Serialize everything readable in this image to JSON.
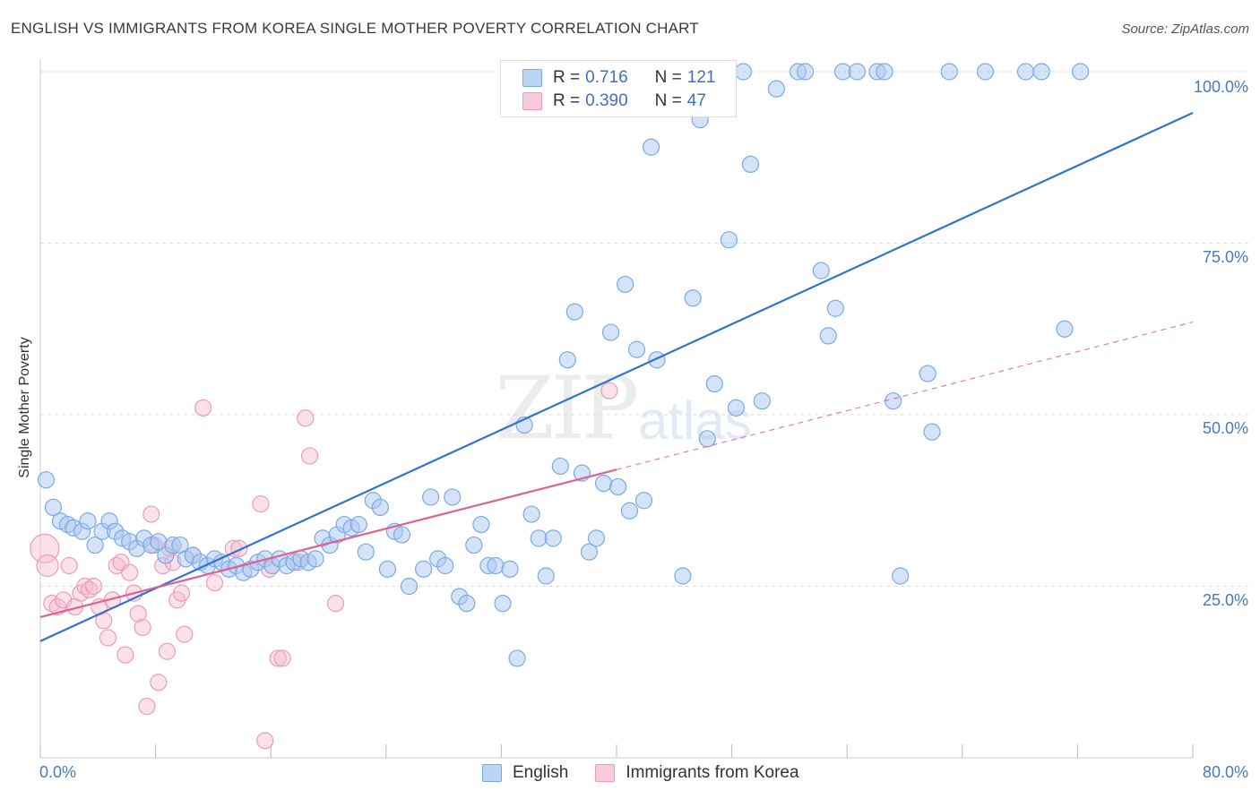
{
  "header": {
    "title": "ENGLISH VS IMMIGRANTS FROM KOREA SINGLE MOTHER POVERTY CORRELATION CHART",
    "source": "Source: ZipAtlas.com"
  },
  "watermark": {
    "zip": "ZIP",
    "atlas": "atlas"
  },
  "legend": {
    "english": {
      "r_label": "R =",
      "r_value": "0.716",
      "n_label": "N =",
      "n_value": "121",
      "name": "English"
    },
    "korea": {
      "r_label": "R =",
      "r_value": "0.390",
      "n_label": "N =",
      "n_value": "47",
      "name": "Immigrants from Korea"
    }
  },
  "colors": {
    "english_fill": "#a9c8f0",
    "english_stroke": "#7aaae6",
    "english_line": "#2f72d0",
    "korea_fill": "#f6bcd0",
    "korea_stroke": "#ee9ab8",
    "korea_line": "#e0608e",
    "grid": "#dddddd",
    "axis_label": "#4a78c2"
  },
  "chart_data": {
    "type": "scatter",
    "title": "ENGLISH VS IMMIGRANTS FROM KOREA SINGLE MOTHER POVERTY CORRELATION CHART",
    "xlabel": "",
    "ylabel": "Single Mother Poverty",
    "xlim": [
      0,
      80
    ],
    "ylim": [
      0,
      104
    ],
    "x_tick_labels": [
      "0.0%",
      "80.0%"
    ],
    "y_tick_labels": [
      "25.0%",
      "50.0%",
      "75.0%",
      "100.0%"
    ],
    "y_ticks": [
      25,
      50,
      75,
      100
    ],
    "grid": true,
    "legend_position": "top-center",
    "series": [
      {
        "name": "English",
        "r": 0.716,
        "n": 121,
        "trend": {
          "x": [
            0,
            80
          ],
          "y": [
            17,
            94
          ]
        },
        "points": [
          [
            0.4,
            40.5
          ],
          [
            0.9,
            36.5
          ],
          [
            1.4,
            34.5
          ],
          [
            1.9,
            34
          ],
          [
            2.3,
            33.5
          ],
          [
            2.9,
            33
          ],
          [
            3.3,
            34.5
          ],
          [
            3.8,
            31
          ],
          [
            4.3,
            33
          ],
          [
            4.8,
            34.5
          ],
          [
            5.2,
            33
          ],
          [
            5.7,
            32
          ],
          [
            6.2,
            31.5
          ],
          [
            6.7,
            30.5
          ],
          [
            7.2,
            32
          ],
          [
            7.7,
            31
          ],
          [
            8.2,
            31.5
          ],
          [
            8.7,
            29.5
          ],
          [
            9.2,
            31
          ],
          [
            9.7,
            31
          ],
          [
            10.1,
            29
          ],
          [
            10.6,
            29.5
          ],
          [
            11.1,
            28.5
          ],
          [
            11.6,
            28
          ],
          [
            12.1,
            29
          ],
          [
            12.6,
            28.5
          ],
          [
            13.1,
            27.5
          ],
          [
            13.6,
            28
          ],
          [
            14.1,
            27
          ],
          [
            14.6,
            27.5
          ],
          [
            15.1,
            28.5
          ],
          [
            15.6,
            29
          ],
          [
            16.1,
            28
          ],
          [
            16.6,
            29
          ],
          [
            17.1,
            28
          ],
          [
            17.6,
            28.5
          ],
          [
            18.1,
            29
          ],
          [
            18.6,
            28.5
          ],
          [
            19.1,
            29
          ],
          [
            19.6,
            32
          ],
          [
            20.1,
            31
          ],
          [
            20.6,
            32.5
          ],
          [
            21.1,
            34
          ],
          [
            21.6,
            33.5
          ],
          [
            22.1,
            34
          ],
          [
            22.6,
            30
          ],
          [
            23.1,
            37.5
          ],
          [
            23.6,
            36.5
          ],
          [
            24.1,
            27.5
          ],
          [
            24.6,
            33
          ],
          [
            25.1,
            32.5
          ],
          [
            25.6,
            25
          ],
          [
            26.6,
            27.5
          ],
          [
            27.1,
            38
          ],
          [
            27.6,
            29
          ],
          [
            28.1,
            28
          ],
          [
            28.6,
            38
          ],
          [
            29.1,
            23.5
          ],
          [
            29.6,
            22.5
          ],
          [
            30.1,
            31
          ],
          [
            30.6,
            34
          ],
          [
            31.1,
            28
          ],
          [
            31.6,
            28
          ],
          [
            32.1,
            22.5
          ],
          [
            32.6,
            27.5
          ],
          [
            33.1,
            14.5
          ],
          [
            33.6,
            48.5
          ],
          [
            34.1,
            35.5
          ],
          [
            34.6,
            32
          ],
          [
            35.1,
            26.5
          ],
          [
            35.6,
            32
          ],
          [
            36.1,
            42.5
          ],
          [
            36.6,
            58
          ],
          [
            37.1,
            65
          ],
          [
            37.6,
            41.5
          ],
          [
            38.1,
            30
          ],
          [
            38.6,
            32
          ],
          [
            39.1,
            40
          ],
          [
            39.6,
            62
          ],
          [
            40.1,
            39.5
          ],
          [
            40.6,
            69
          ],
          [
            40.9,
            36
          ],
          [
            41.4,
            59.5
          ],
          [
            41.9,
            37.5
          ],
          [
            42.4,
            89
          ],
          [
            42.8,
            58
          ],
          [
            43.3,
            100
          ],
          [
            43.8,
            100
          ],
          [
            44.3,
            100
          ],
          [
            44.6,
            26.5
          ],
          [
            45.3,
            67
          ],
          [
            45.8,
            93
          ],
          [
            46.3,
            46.5
          ],
          [
            46.8,
            54.5
          ],
          [
            47.3,
            100
          ],
          [
            47.8,
            75.5
          ],
          [
            48.3,
            51
          ],
          [
            48.8,
            100
          ],
          [
            49.3,
            86.5
          ],
          [
            50.1,
            52
          ],
          [
            51.1,
            97.5
          ],
          [
            52.6,
            100
          ],
          [
            53.1,
            100
          ],
          [
            54.2,
            71
          ],
          [
            54.7,
            61.5
          ],
          [
            55.2,
            65.5
          ],
          [
            55.7,
            100
          ],
          [
            56.7,
            100
          ],
          [
            58.1,
            100
          ],
          [
            58.6,
            100
          ],
          [
            59.2,
            52
          ],
          [
            59.7,
            26.5
          ],
          [
            61.6,
            56
          ],
          [
            61.9,
            47.5
          ],
          [
            63.1,
            100
          ],
          [
            65.6,
            100
          ],
          [
            68.4,
            100
          ],
          [
            69.5,
            100
          ],
          [
            71.1,
            62.5
          ],
          [
            72.2,
            100
          ]
        ]
      },
      {
        "name": "Immigrants from Korea",
        "r": 0.39,
        "n": 47,
        "trend": {
          "x": [
            0,
            40
          ],
          "y": [
            20.5,
            42
          ]
        },
        "trend_dashed": {
          "x": [
            40,
            80
          ],
          "y": [
            42,
            63.5
          ]
        },
        "points": [
          [
            0.3,
            30.5
          ],
          [
            0.5,
            28
          ],
          [
            0.8,
            22.5
          ],
          [
            1.2,
            22
          ],
          [
            1.6,
            23
          ],
          [
            2.0,
            28
          ],
          [
            2.4,
            22
          ],
          [
            2.8,
            24
          ],
          [
            3.1,
            25
          ],
          [
            3.4,
            24.5
          ],
          [
            3.7,
            25
          ],
          [
            4.1,
            22
          ],
          [
            4.4,
            20
          ],
          [
            4.7,
            17.5
          ],
          [
            5.0,
            23
          ],
          [
            5.3,
            28
          ],
          [
            5.6,
            28.5
          ],
          [
            5.9,
            15
          ],
          [
            6.2,
            27
          ],
          [
            6.5,
            24
          ],
          [
            6.8,
            21
          ],
          [
            7.1,
            19
          ],
          [
            7.4,
            7.5
          ],
          [
            7.7,
            35.5
          ],
          [
            7.9,
            31
          ],
          [
            8.2,
            11
          ],
          [
            8.5,
            28
          ],
          [
            8.8,
            15.5
          ],
          [
            9.0,
            30.5
          ],
          [
            9.2,
            28.5
          ],
          [
            9.5,
            23
          ],
          [
            9.8,
            24
          ],
          [
            10.0,
            18
          ],
          [
            10.6,
            29.5
          ],
          [
            11.3,
            51
          ],
          [
            12.1,
            25.5
          ],
          [
            13.4,
            30.5
          ],
          [
            13.8,
            30.5
          ],
          [
            15.3,
            37
          ],
          [
            15.6,
            2.5
          ],
          [
            15.9,
            27.5
          ],
          [
            16.5,
            14.5
          ],
          [
            16.8,
            14.5
          ],
          [
            17.9,
            28.5
          ],
          [
            18.4,
            49.5
          ],
          [
            18.7,
            44
          ],
          [
            20.5,
            22.5
          ],
          [
            39.5,
            53.5
          ]
        ]
      }
    ]
  }
}
